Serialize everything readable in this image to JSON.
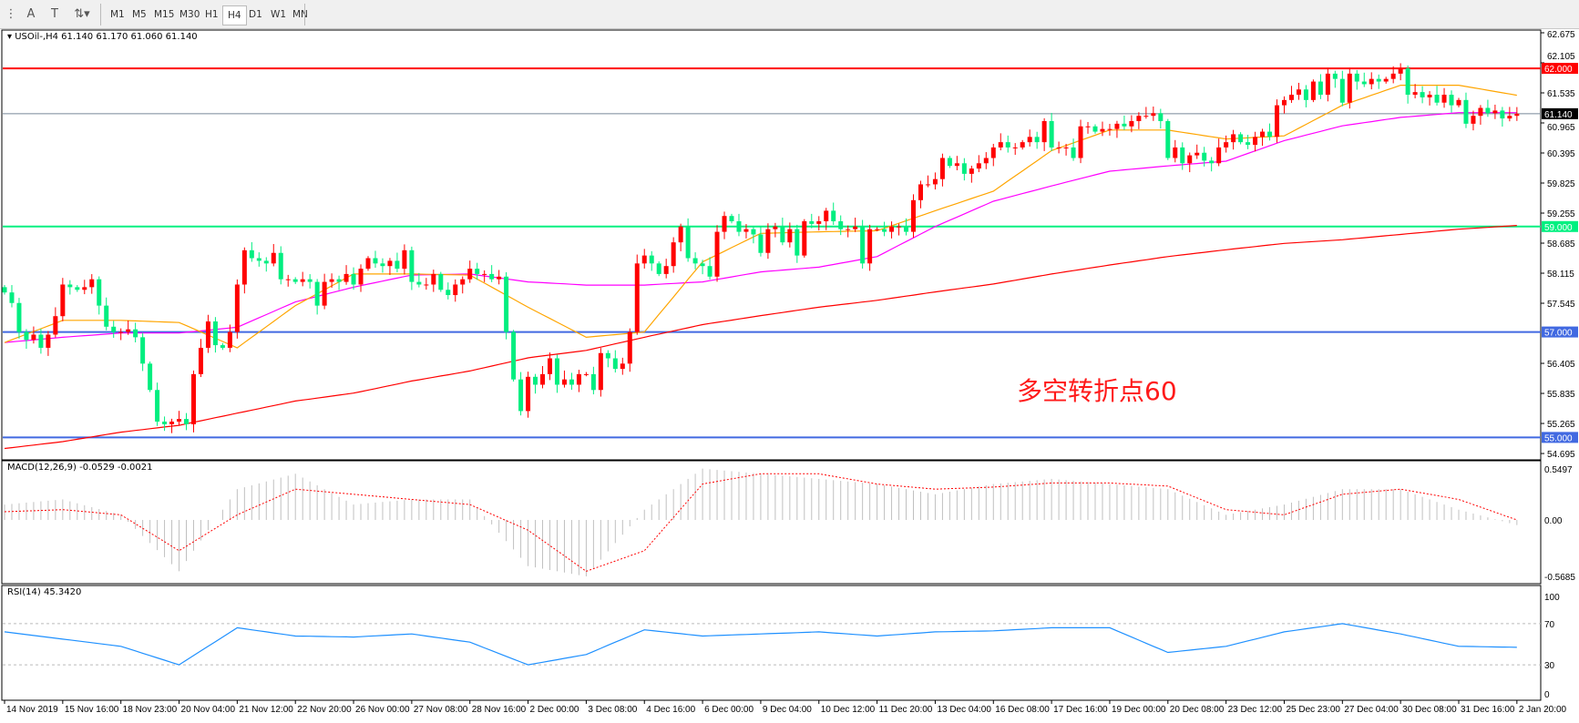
{
  "toolbar": {
    "icons": [
      "fibonacci-fan-icon",
      "text-icon",
      "text-label-icon",
      "arrows-icon"
    ],
    "timeframes": [
      "M1",
      "M5",
      "M15",
      "M30",
      "H1",
      "H4",
      "D1",
      "W1",
      "MN"
    ],
    "active_timeframe": "H4"
  },
  "main_header": {
    "symbol": "USOil-,H4",
    "ohlc": "61.140 61.170 61.060 61.140"
  },
  "macd_header": "MACD(12,26,9) -0.0529 -0.0021",
  "rsi_header": "RSI(14) 45.3420",
  "annotation": "多空转折点60",
  "colors": {
    "bull": "#ff0000",
    "bear": "#00ee80",
    "fast_ma": "#ffa500",
    "mid_ma": "#ff00ff",
    "slow_ma": "#ff0000",
    "rsi": "#1e90ff",
    "macd_hist": "#c0c0c0",
    "macd_signal": "#ff0000"
  },
  "chart_data": [
    {
      "type": "candlestick",
      "title": "USOil-,H4",
      "price_axis_ticks": [
        "62.675",
        "62.105",
        "61.535",
        "60.965",
        "60.395",
        "59.825",
        "59.255",
        "58.685",
        "58.115",
        "57.545",
        "56.405",
        "55.835",
        "55.265",
        "54.695"
      ],
      "ylim": [
        54.695,
        62.675
      ],
      "time_axis_ticks": [
        "14 Nov 2019",
        "15 Nov 16:00",
        "18 Nov 23:00",
        "20 Nov 04:00",
        "21 Nov 12:00",
        "22 Nov 20:00",
        "26 Nov 00:00",
        "27 Nov 08:00",
        "28 Nov 16:00",
        "2 Dec 00:00",
        "3 Dec 08:00",
        "4 Dec 16:00",
        "6 Dec 00:00",
        "9 Dec 04:00",
        "10 Dec 12:00",
        "11 Dec 20:00",
        "13 Dec 04:00",
        "16 Dec 08:00",
        "17 Dec 16:00",
        "19 Dec 00:00",
        "20 Dec 08:00",
        "23 Dec 12:00",
        "25 Dec 23:00",
        "27 Dec 04:00",
        "30 Dec 08:00",
        "31 Dec 16:00",
        "2 Jan 20:00"
      ],
      "bars_per_time_tick": 8,
      "closes": [
        57.75,
        57.55,
        57.0,
        56.85,
        56.95,
        56.7,
        56.95,
        57.3,
        57.9,
        57.85,
        57.8,
        57.85,
        58.0,
        57.5,
        57.1,
        57.0,
        57.0,
        57.05,
        56.9,
        56.4,
        55.9,
        55.3,
        55.25,
        55.3,
        55.35,
        55.25,
        56.2,
        56.7,
        57.2,
        56.75,
        56.7,
        57.0,
        57.9,
        58.55,
        58.4,
        58.35,
        58.3,
        58.5,
        58.0,
        58.0,
        57.95,
        58.0,
        57.95,
        57.5,
        57.95,
        58.0,
        57.95,
        58.1,
        57.9,
        58.2,
        58.4,
        58.3,
        58.25,
        58.35,
        58.2,
        58.55,
        57.95,
        57.9,
        57.9,
        58.1,
        57.8,
        57.7,
        57.9,
        58.0,
        58.2,
        58.1,
        58.1,
        58.0,
        58.05,
        57.0,
        56.1,
        55.5,
        56.15,
        56.0,
        56.2,
        56.5,
        56.0,
        56.1,
        56.0,
        56.2,
        56.2,
        55.9,
        56.6,
        56.5,
        56.3,
        56.4,
        57.0,
        58.3,
        58.45,
        58.3,
        58.1,
        58.25,
        58.7,
        59.0,
        58.4,
        58.3,
        58.25,
        58.05,
        58.9,
        59.2,
        59.1,
        58.9,
        58.95,
        58.85,
        58.5,
        58.95,
        59.0,
        58.7,
        58.95,
        58.45,
        59.1,
        59.05,
        59.1,
        59.3,
        59.1,
        58.95,
        58.95,
        59.0,
        58.3,
        58.95,
        58.95,
        58.9,
        59.0,
        59.0,
        58.9,
        59.5,
        59.8,
        59.8,
        59.9,
        60.3,
        60.15,
        60.2,
        60.0,
        60.1,
        60.2,
        60.3,
        60.5,
        60.6,
        60.5,
        60.5,
        60.6,
        60.7,
        60.6,
        61.0,
        60.5,
        60.5,
        60.5,
        60.3,
        60.9,
        60.9,
        60.8,
        60.85,
        60.85,
        60.95,
        60.9,
        61.0,
        61.1,
        61.1,
        61.15,
        61.0,
        60.3,
        60.5,
        60.2,
        60.35,
        60.4,
        60.25,
        60.2,
        60.5,
        60.6,
        60.75,
        60.6,
        60.55,
        60.7,
        60.8,
        60.7,
        61.3,
        61.4,
        61.5,
        61.6,
        61.4,
        61.75,
        61.5,
        61.9,
        61.8,
        61.35,
        61.9,
        61.75,
        61.7,
        61.8,
        61.75,
        61.8,
        61.9,
        62.0,
        61.5,
        61.55,
        61.45,
        61.5,
        61.35,
        61.5,
        61.3,
        61.4,
        60.95,
        61.1,
        61.25,
        61.15,
        61.2,
        61.05,
        61.1,
        61.14
      ],
      "moving_averages_at_time_ticks": {
        "fast": [
          56.8,
          57.22,
          57.22,
          57.18,
          56.7,
          57.5,
          58.1,
          58.1,
          58.08,
          57.47,
          56.9,
          57.0,
          58.33,
          58.87,
          58.9,
          58.92,
          59.3,
          59.67,
          60.44,
          60.83,
          60.83,
          60.66,
          60.72,
          61.3,
          61.68,
          61.68,
          61.49
        ],
        "mid": [
          56.8,
          56.9,
          56.98,
          56.98,
          57.09,
          57.57,
          57.85,
          58.08,
          58.1,
          57.95,
          57.89,
          57.89,
          57.95,
          58.14,
          58.23,
          58.43,
          59.0,
          59.48,
          59.77,
          60.05,
          60.15,
          60.24,
          60.63,
          60.91,
          61.07,
          61.16,
          61.16
        ],
        "slow": [
          54.79,
          54.92,
          55.1,
          55.23,
          55.46,
          55.69,
          55.84,
          56.07,
          56.26,
          56.51,
          56.65,
          56.9,
          57.14,
          57.31,
          57.47,
          57.6,
          57.76,
          57.91,
          58.1,
          58.27,
          58.43,
          58.56,
          58.68,
          58.75,
          58.85,
          58.95,
          59.02
        ]
      },
      "horizontal_levels": [
        {
          "value": 62.0,
          "label": "62.000",
          "color": "#ff0000"
        },
        {
          "value": 61.14,
          "label": "61.140",
          "color": "#000000",
          "line_color": "#778899"
        },
        {
          "value": 59.0,
          "label": "59.000",
          "color": "#00f080"
        },
        {
          "value": 57.0,
          "label": "57.000",
          "color": "#4169e1"
        },
        {
          "value": 55.0,
          "label": "55.000",
          "color": "#4169e1"
        }
      ]
    },
    {
      "type": "bar",
      "title": "MACD(12,26,9)",
      "axis_ticks": [
        "0.5497",
        "0.00",
        "-0.5685"
      ],
      "ylim": [
        -0.5685,
        0.5497
      ],
      "main_at_time_ticks": [
        0.15,
        0.2,
        0.05,
        -0.5,
        0.3,
        0.45,
        0.15,
        0.2,
        0.2,
        -0.45,
        -0.55,
        0.1,
        0.5,
        0.45,
        0.4,
        0.35,
        0.25,
        0.35,
        0.4,
        0.35,
        0.3,
        0.05,
        0.15,
        0.3,
        0.3,
        0.1,
        -0.05
      ],
      "signal_at_time_ticks": [
        0.08,
        0.1,
        0.05,
        -0.3,
        0.05,
        0.3,
        0.25,
        0.2,
        0.15,
        -0.1,
        -0.5,
        -0.3,
        0.35,
        0.45,
        0.45,
        0.35,
        0.3,
        0.32,
        0.36,
        0.36,
        0.33,
        0.1,
        0.05,
        0.25,
        0.3,
        0.2,
        0.0
      ]
    },
    {
      "type": "line",
      "title": "RSI(14)",
      "axis_ticks": [
        "100",
        "70",
        "30",
        "0"
      ],
      "ylim": [
        0,
        100
      ],
      "levels": [
        70,
        30
      ],
      "values_at_time_ticks": [
        62,
        55,
        48,
        30,
        66,
        58,
        57,
        60,
        52,
        30,
        40,
        64,
        58,
        60,
        62,
        58,
        62,
        63,
        66,
        66,
        42,
        48,
        62,
        70,
        60,
        48,
        47
      ]
    }
  ]
}
